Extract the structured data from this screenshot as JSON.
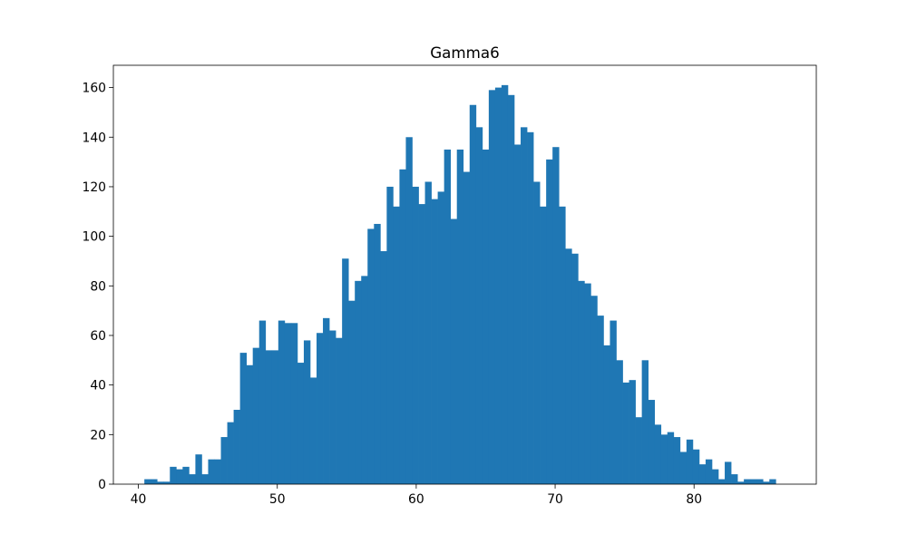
{
  "chart_data": {
    "type": "bar",
    "title": "Gamma6",
    "xlabel": "",
    "ylabel": "",
    "bar_color": "#1f77b4",
    "xlim": [
      38.2,
      88.8
    ],
    "ylim": [
      0,
      169
    ],
    "grid": false,
    "x_ticks": [
      40,
      50,
      60,
      70,
      80
    ],
    "y_ticks": [
      0,
      20,
      40,
      60,
      80,
      100,
      120,
      140,
      160
    ],
    "bin_start": 40.43,
    "bin_width": 0.4591,
    "values": [
      2,
      2,
      1,
      1,
      7,
      6,
      7,
      4,
      12,
      4,
      10,
      10,
      19,
      25,
      30,
      53,
      48,
      55,
      66,
      54,
      54,
      66,
      65,
      65,
      49,
      58,
      43,
      61,
      67,
      62,
      59,
      91,
      74,
      82,
      84,
      103,
      105,
      94,
      120,
      112,
      127,
      140,
      120,
      113,
      122,
      115,
      118,
      135,
      107,
      135,
      126,
      153,
      144,
      135,
      159,
      160,
      161,
      157,
      137,
      144,
      142,
      122,
      112,
      131,
      136,
      112,
      95,
      93,
      82,
      81,
      76,
      68,
      56,
      66,
      50,
      41,
      42,
      27,
      50,
      34,
      24,
      20,
      21,
      19,
      13,
      18,
      14,
      8,
      10,
      6,
      2,
      9,
      4,
      1,
      2,
      2,
      2,
      1,
      2
    ]
  }
}
